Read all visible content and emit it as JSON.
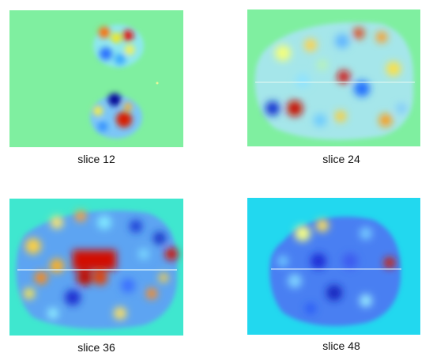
{
  "figure": {
    "panels": [
      {
        "caption": "slice 12",
        "background": "#7fefa0"
      },
      {
        "caption": "slice 24",
        "background": "#7fefa0"
      },
      {
        "caption": "slice 36",
        "background": "#3fe7cf"
      },
      {
        "caption": "slice 48",
        "background": "#22d8ef"
      }
    ]
  },
  "colors": {
    "colormap": [
      "#00008f",
      "#0000ff",
      "#0080ff",
      "#00ffff",
      "#80ff80",
      "#ffff00",
      "#ff8000",
      "#ff0000",
      "#800000"
    ]
  }
}
